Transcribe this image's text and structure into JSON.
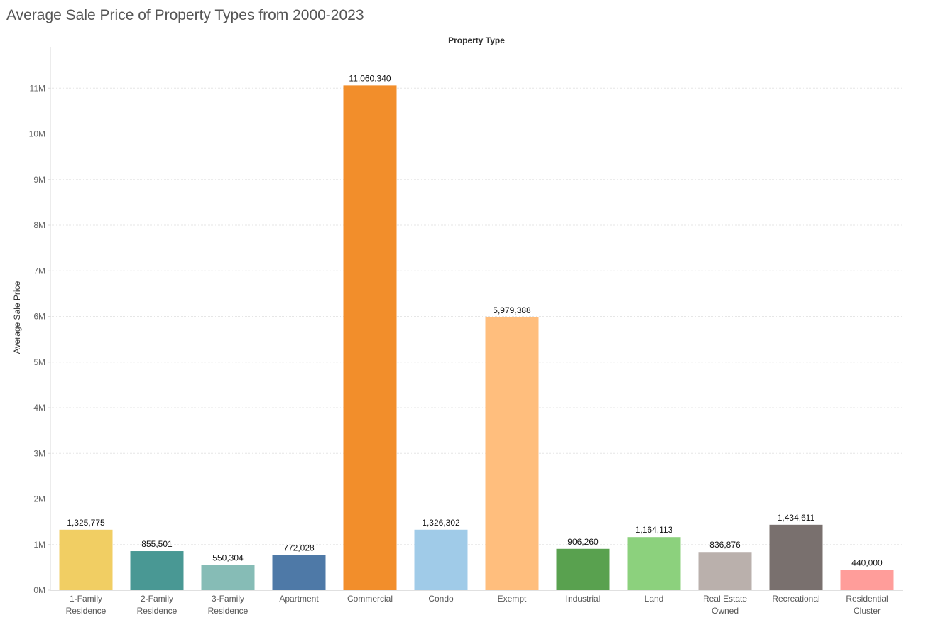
{
  "title": "Average Sale Price of Property Types from 2000-2023",
  "chart_data": {
    "type": "bar",
    "title": "Average Sale Price of Property Types from 2000-2023",
    "column_header": "Property Type",
    "xlabel": "",
    "ylabel": "Average Sale Price",
    "ylim": [
      0,
      11000000
    ],
    "y_ticks": [
      0,
      1000000,
      2000000,
      3000000,
      4000000,
      5000000,
      6000000,
      7000000,
      8000000,
      9000000,
      10000000,
      11000000
    ],
    "y_tick_labels": [
      "0M",
      "1M",
      "2M",
      "3M",
      "4M",
      "5M",
      "6M",
      "7M",
      "8M",
      "9M",
      "10M",
      "11M"
    ],
    "grid": true,
    "categories": [
      [
        "1-Family",
        "Residence"
      ],
      [
        "2-Family",
        "Residence"
      ],
      [
        "3-Family",
        "Residence"
      ],
      [
        "Apartment"
      ],
      [
        "Commercial"
      ],
      [
        "Condo"
      ],
      [
        "Exempt"
      ],
      [
        "Industrial"
      ],
      [
        "Land"
      ],
      [
        "Real Estate",
        "Owned"
      ],
      [
        "Recreational"
      ],
      [
        "Residential",
        "Cluster"
      ]
    ],
    "values": [
      1325775,
      855501,
      550304,
      772028,
      11060340,
      1326302,
      5979388,
      906260,
      1164113,
      836876,
      1434611,
      440000
    ],
    "value_labels": [
      "1,325,775",
      "855,501",
      "550,304",
      "772,028",
      "11,060,340",
      "1,326,302",
      "5,979,388",
      "906,260",
      "1,164,113",
      "836,876",
      "1,434,611",
      "440,000"
    ],
    "colors": [
      "#F1CE63",
      "#499894",
      "#86BCB6",
      "#4E79A7",
      "#F28E2B",
      "#A0CBE8",
      "#FFBE7D",
      "#59A14F",
      "#8CD17D",
      "#BAB0AC",
      "#79706E",
      "#FF9D9A"
    ]
  }
}
